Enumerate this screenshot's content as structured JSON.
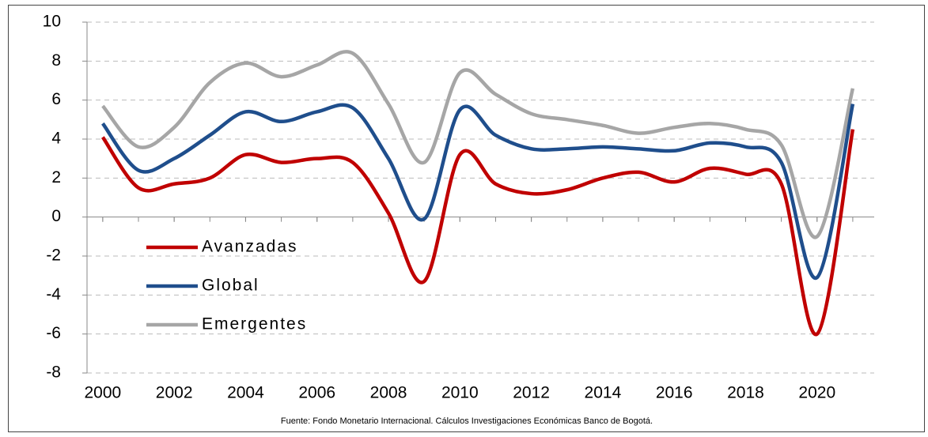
{
  "chart_data": {
    "type": "line",
    "x": [
      2000,
      2001,
      2002,
      2003,
      2004,
      2005,
      2006,
      2007,
      2008,
      2009,
      2010,
      2011,
      2012,
      2013,
      2014,
      2015,
      2016,
      2017,
      2018,
      2019,
      2020,
      2021
    ],
    "series": [
      {
        "name": "Avanzadas",
        "color": "#c00000",
        "values": [
          4.1,
          1.5,
          1.7,
          2.0,
          3.2,
          2.8,
          3.0,
          2.8,
          0.2,
          -3.3,
          3.2,
          1.7,
          1.2,
          1.4,
          2.0,
          2.3,
          1.8,
          2.5,
          2.2,
          1.7,
          -6.0,
          4.5
        ]
      },
      {
        "name": "Global",
        "color": "#1f4e8c",
        "values": [
          4.8,
          2.4,
          3.0,
          4.2,
          5.4,
          4.9,
          5.4,
          5.6,
          3.0,
          -0.1,
          5.5,
          4.2,
          3.5,
          3.5,
          3.6,
          3.5,
          3.4,
          3.8,
          3.6,
          2.8,
          -3.1,
          5.8
        ]
      },
      {
        "name": "Emergentes",
        "color": "#a6a6a6",
        "values": [
          5.7,
          3.6,
          4.6,
          6.9,
          7.9,
          7.2,
          7.8,
          8.4,
          5.8,
          2.8,
          7.4,
          6.3,
          5.3,
          5.0,
          4.7,
          4.3,
          4.6,
          4.8,
          4.5,
          3.7,
          -1.0,
          6.6
        ]
      }
    ],
    "xlim": [
      1999.56,
      2021.6
    ],
    "xticks": [
      2000,
      2002,
      2004,
      2006,
      2008,
      2010,
      2012,
      2014,
      2016,
      2018,
      2020
    ],
    "ylim": [
      -8,
      10
    ],
    "yticks": [
      -8,
      -6,
      -4,
      -2,
      0,
      2,
      4,
      6,
      8,
      10
    ],
    "grid": true,
    "legend": "lower left",
    "note": "Fuente: Fondo Monetario Internacional. Cálculos Investigaciones Económicas Banco de Bogotá."
  }
}
